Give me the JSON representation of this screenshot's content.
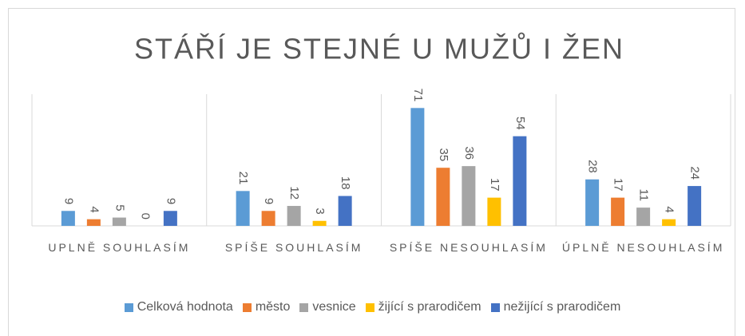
{
  "chart_data": {
    "type": "bar",
    "title": "STÁŘÍ JE STEJNÉ U MUŽŮ I ŽEN",
    "categories": [
      "UPLNĚ SOUHLASÍM",
      "SPÍŠE SOUHLASÍM",
      "SPÍŠE NESOUHLASÍM",
      "ÚPLNĚ NESOUHLASÍM"
    ],
    "series": [
      {
        "name": "Celková hodnota",
        "color": "#5b9bd5",
        "values": [
          9,
          21,
          71,
          28
        ]
      },
      {
        "name": "město",
        "color": "#ed7d31",
        "values": [
          4,
          9,
          35,
          17
        ]
      },
      {
        "name": "vesnice",
        "color": "#a5a5a5",
        "values": [
          5,
          12,
          36,
          11
        ]
      },
      {
        "name": "žijící s prarodičem",
        "color": "#ffc000",
        "values": [
          0,
          3,
          17,
          4
        ]
      },
      {
        "name": "nežijící s prarodičem",
        "color": "#4472c4",
        "values": [
          9,
          18,
          54,
          24
        ]
      }
    ],
    "legend": "bottom"
  }
}
